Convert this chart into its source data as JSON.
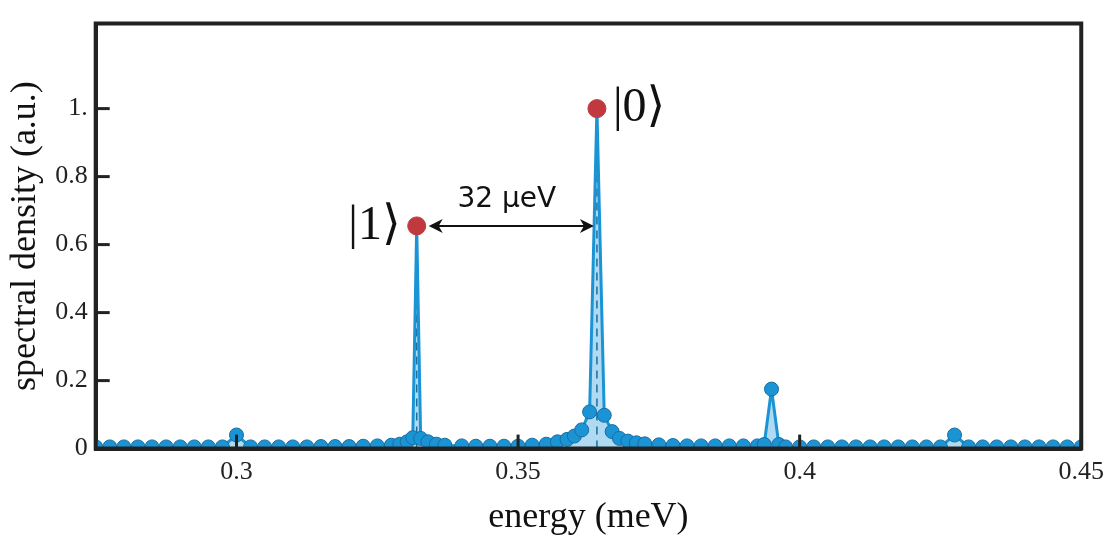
{
  "chart_data": {
    "type": "area",
    "xlabel": "energy (meV)",
    "ylabel": "spectral density (a.u.)",
    "xlim": [
      0.275,
      0.45
    ],
    "xticks": [
      0.3,
      0.35,
      0.4,
      0.45
    ],
    "ylim": [
      0,
      1.25
    ],
    "yticks": [
      0,
      0.2,
      0.4,
      0.6,
      0.8,
      {
        "value": 1,
        "label": "1."
      }
    ],
    "grid": false,
    "legend": false,
    "marker": "circle",
    "series": [
      {
        "color": "#1b94d6",
        "x": [
          0.275,
          0.2775,
          0.28,
          0.2825,
          0.285,
          0.2875,
          0.29,
          0.2925,
          0.295,
          0.2975,
          0.3,
          0.3025,
          0.305,
          0.3075,
          0.31,
          0.3125,
          0.315,
          0.3175,
          0.32,
          0.3225,
          0.325,
          0.3275,
          0.329,
          0.3303,
          0.3313,
          0.332,
          0.3327,
          0.334,
          0.3355,
          0.337,
          0.34,
          0.3425,
          0.345,
          0.3475,
          0.35,
          0.3525,
          0.355,
          0.357,
          0.3587,
          0.36,
          0.3613,
          0.3627,
          0.364,
          0.3653,
          0.3667,
          0.368,
          0.3695,
          0.371,
          0.3725,
          0.375,
          0.3775,
          0.38,
          0.3825,
          0.385,
          0.3875,
          0.39,
          0.3925,
          0.3937,
          0.395,
          0.3963,
          0.3975,
          0.4,
          0.4025,
          0.405,
          0.4075,
          0.41,
          0.4125,
          0.415,
          0.4175,
          0.42,
          0.4225,
          0.425,
          0.4275,
          0.43,
          0.4325,
          0.435,
          0.4375,
          0.44,
          0.4425,
          0.445,
          0.4475,
          0.45
        ],
        "values": [
          0.005,
          0.005,
          0.005,
          0.005,
          0.005,
          0.005,
          0.005,
          0.005,
          0.005,
          0.005,
          0.04,
          0.005,
          0.005,
          0.005,
          0.005,
          0.005,
          0.006,
          0.006,
          0.006,
          0.007,
          0.008,
          0.01,
          0.013,
          0.02,
          0.032,
          0.655,
          0.03,
          0.02,
          0.013,
          0.01,
          0.008,
          0.007,
          0.007,
          0.007,
          0.007,
          0.01,
          0.013,
          0.02,
          0.027,
          0.037,
          0.055,
          0.108,
          1.0,
          0.098,
          0.05,
          0.03,
          0.022,
          0.017,
          0.014,
          0.011,
          0.009,
          0.008,
          0.008,
          0.008,
          0.008,
          0.008,
          0.008,
          0.012,
          0.175,
          0.012,
          0.005,
          0.005,
          0.005,
          0.005,
          0.005,
          0.005,
          0.005,
          0.005,
          0.005,
          0.005,
          0.005,
          0.005,
          0.04,
          0.005,
          0.005,
          0.005,
          0.005,
          0.005,
          0.005,
          0.005,
          0.005,
          0.005
        ]
      },
      {
        "type": "scatter",
        "color": "#c0393f",
        "x": [
          0.332,
          0.364
        ],
        "values": [
          0.655,
          1.0
        ]
      }
    ],
    "ref_lines": [
      {
        "axis": "x",
        "value": 0.332,
        "color": "#1a5a80",
        "line_style": "dashed"
      },
      {
        "axis": "x",
        "value": 0.364,
        "color": "#1a5a80",
        "line_style": "dashed"
      }
    ],
    "annotations": [
      {
        "text": "|1⟩",
        "x": 0.332,
        "y": 0.655
      },
      {
        "text": "|0⟩",
        "x": 0.364,
        "y": 1.0
      },
      "32 μeV"
    ]
  }
}
